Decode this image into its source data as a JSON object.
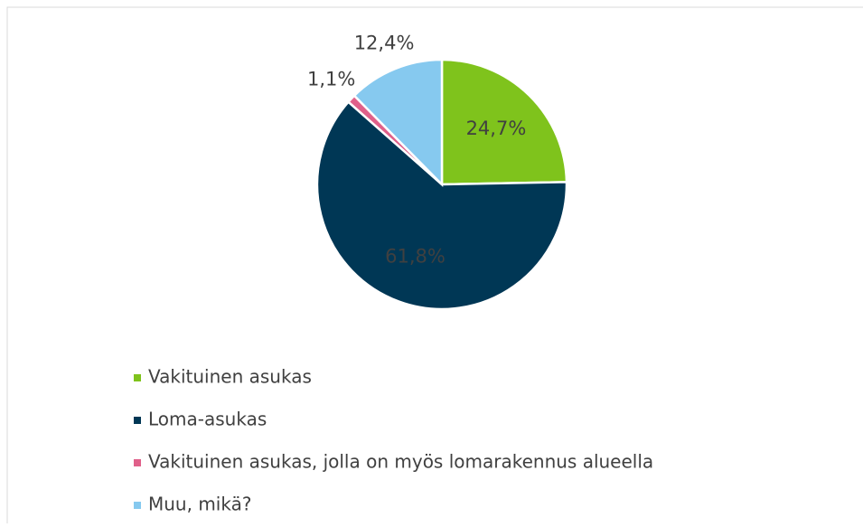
{
  "chart_data": {
    "type": "pie",
    "categories": [
      "Vakituinen asukas",
      "Loma-asukas",
      "Vakituinen asukas, jolla on myös lomarakennus alueella",
      "Muu, mikä?"
    ],
    "values": [
      24.7,
      61.8,
      1.1,
      12.4
    ],
    "value_labels": [
      "24,7%",
      "61,8%",
      "1,1%",
      "12,4%"
    ],
    "colors": [
      "#7fc31c",
      "#003755",
      "#e0608a",
      "#86c9ef"
    ],
    "legend": "bottom-left"
  }
}
